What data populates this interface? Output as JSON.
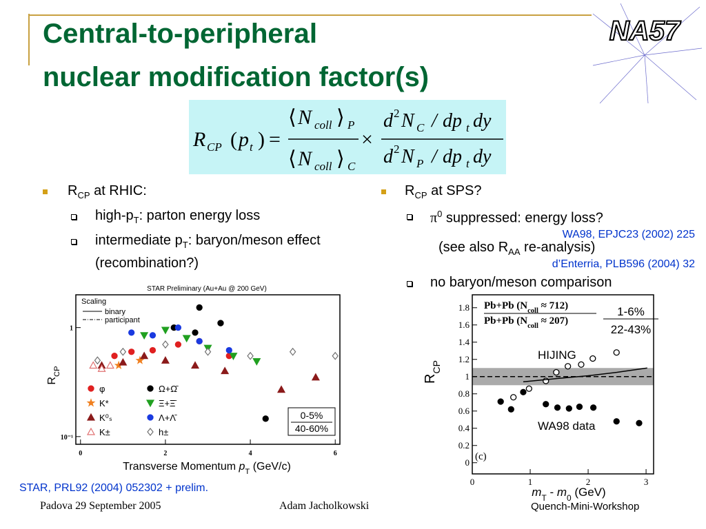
{
  "header": {
    "title_lines": [
      "Central-to-peripheral",
      "nuclear modification factor(s)"
    ],
    "logo": "NA57"
  },
  "formula": {
    "lhs": "R",
    "lhs_sub": "CP",
    "open": "(",
    "arg": "p",
    "arg_sub": "t",
    "close": ")",
    "equals": "=",
    "times": "×",
    "left_num": {
      "open": "⟨",
      "sym": "N",
      "sub": "coll",
      "close": "⟩",
      "outer": "P"
    },
    "left_den": {
      "open": "⟨",
      "sym": "N",
      "sub": "coll",
      "close": "⟩",
      "outer": "C"
    },
    "right_num": {
      "d": "d",
      "power": "2",
      "sym": "N",
      "sub": "C",
      "slash": "/",
      "dp": "dp",
      "dp_sub": "t",
      "dy": "dy"
    },
    "right_den": {
      "d": "d",
      "power": "2",
      "sym": "N",
      "sub": "P",
      "slash": "/",
      "dp": "dp",
      "dp_sub": "t",
      "dy": "dy"
    }
  },
  "left_bullets": {
    "main": {
      "pre": "R",
      "sub": "CP",
      "post": " at RHIC:"
    },
    "items": [
      {
        "pre": "high-p",
        "sub": "T",
        "post": ": parton energy loss"
      },
      {
        "pre": "intermediate p",
        "sub": "T",
        "post": ": baryon/meson effect (recombination?)"
      }
    ]
  },
  "right_bullets": {
    "main": {
      "pre": "R",
      "sub": "CP",
      "post": " at SPS?"
    },
    "item1": {
      "pre": "π",
      "sup": "0",
      "post": " suppressed: energy loss?"
    },
    "ref1": "WA98, EPJC23 (2002) 225",
    "note": {
      "pre": "(see also R",
      "sub": "AA",
      "post": " re-analysis)"
    },
    "ref2": "d’Enterria, PLB596 (2004) 32",
    "item2": "no baryon/meson comparison"
  },
  "footer": {
    "citation": "STAR, PRL92 (2004) 052302 + prelim.",
    "date": "Padova 29 September 2005",
    "author": "Adam Jacholkowski",
    "event": "Quench-Mini-Workshop"
  },
  "chart_data": [
    {
      "type": "scatter",
      "title": "STAR Preliminary (Au+Au @ 200 GeV)",
      "log_y": true,
      "x_label": {
        "pre": "Transverse Momentum ",
        "var": "p",
        "sub": "T",
        "post": " (GeV/c)"
      },
      "y_label": {
        "pre": "R",
        "sub": "CP"
      },
      "xlim": [
        -0.11,
        6.11
      ],
      "ylim": [
        0.085,
        2.0
      ],
      "xticks": [
        0,
        2,
        4,
        6
      ],
      "yticks": [
        {
          "value": 0.1,
          "label": "10⁻¹"
        },
        1
      ],
      "scaling": {
        "title": "Scaling",
        "binary": "binary",
        "participant": "participant"
      },
      "centrality": [
        "0-5%",
        "40-60%"
      ],
      "series": [
        {
          "name": "φ",
          "color": "#e02020",
          "marker": "circle",
          "x": [
            0.8,
            1.2,
            1.7,
            2.3,
            2.8,
            3.5
          ],
          "values": [
            0.55,
            0.6,
            0.62,
            0.7,
            0.75,
            0.55
          ]
        },
        {
          "name": "Ω+Ω̄",
          "color": "#000000",
          "marker": "circle",
          "x": [
            2.2,
            2.7,
            2.8,
            3.3,
            4.36
          ],
          "values": [
            1.0,
            0.9,
            1.53,
            1.1,
            0.146
          ]
        },
        {
          "name": "K*",
          "color": "#f08020",
          "marker": "star",
          "x": [
            0.9,
            1.4
          ],
          "values": [
            0.45,
            0.5
          ]
        },
        {
          "name": "Ξ+Ξ̄",
          "color": "#20a020",
          "marker": "tri-down",
          "x": [
            1.5,
            2.0,
            2.5,
            3.0,
            3.6,
            4.15
          ],
          "values": [
            0.85,
            0.95,
            0.8,
            0.65,
            0.55,
            0.49
          ]
        },
        {
          "name": "K⁰ₛ",
          "color": "#8b1a1a",
          "marker": "tri-up",
          "x": [
            0.5,
            1.0,
            1.5,
            2.0,
            2.7,
            3.4,
            4.73,
            5.54
          ],
          "values": [
            0.45,
            0.48,
            0.55,
            0.5,
            0.45,
            0.4,
            0.27,
            0.35
          ]
        },
        {
          "name": "Λ+Λ̄",
          "color": "#1a3ae0",
          "marker": "circle",
          "x": [
            1.2,
            1.7,
            2.3,
            2.8,
            3.5
          ],
          "values": [
            0.9,
            0.85,
            1.0,
            0.75,
            0.62
          ]
        },
        {
          "name": "K±",
          "color": "#e07070",
          "marker": "tri-up-open",
          "x": [
            0.3,
            0.5,
            0.7
          ],
          "values": [
            0.45,
            0.42,
            0.45
          ]
        },
        {
          "name": "h±",
          "color": "#707070",
          "marker": "diamond-open",
          "x": [
            0.4,
            1.0,
            2.0,
            3.0,
            4.0,
            5.0,
            6.0
          ],
          "values": [
            0.5,
            0.6,
            0.7,
            0.6,
            0.55,
            0.6,
            0.55
          ]
        }
      ]
    },
    {
      "type": "scatter",
      "xlim": [
        0,
        3.13
      ],
      "ylim": [
        -0.13,
        1.95
      ],
      "xticks": [
        0,
        1,
        2,
        3
      ],
      "yticks": [
        0,
        0.2,
        0.4,
        0.6,
        0.8,
        1,
        1.2,
        1.4,
        1.6,
        1.8
      ],
      "x_label": {
        "a": "m",
        "a_sub": "T",
        "mid": " - ",
        "b": "m",
        "b_sub": "0",
        "end": " (GeV)"
      },
      "y_label": {
        "pre": "R",
        "sub": "CP"
      },
      "legend_num": {
        "pre": "Pb+Pb (N",
        "sub": "coll",
        "post": " ≈ 712)"
      },
      "legend_den": {
        "pre": "Pb+Pb (N",
        "sub": "coll",
        "post": " ≈ 207)"
      },
      "centrality": [
        "1-6%",
        "22-43%"
      ],
      "band": [
        0.9,
        1.1
      ],
      "reference": 1,
      "annotations": [
        "HIJING",
        "WA98 data",
        "(c)"
      ],
      "series": [
        {
          "color": "#000000",
          "marker": "circle-open",
          "x": [
            0.71,
            0.98,
            1.27,
            1.45,
            1.65,
            1.88,
            2.08,
            2.49
          ],
          "values": [
            0.76,
            0.86,
            0.95,
            1.05,
            1.12,
            1.14,
            1.21,
            1.28
          ]
        },
        {
          "color": "#000000",
          "marker": "circle",
          "x": [
            0.49,
            0.67,
            0.88,
            1.27,
            1.47,
            1.67,
            1.85,
            2.09,
            2.49,
            2.88
          ],
          "values": [
            0.71,
            0.62,
            0.82,
            0.68,
            0.64,
            0.63,
            0.65,
            0.64,
            0.48,
            0.46
          ]
        },
        {
          "color": "#000000",
          "marker": "line",
          "x": [
            0.88,
            1.5,
            2.0,
            2.5,
            3.02
          ],
          "values": [
            0.94,
            0.98,
            1.01,
            1.05,
            1.1
          ]
        }
      ]
    }
  ]
}
